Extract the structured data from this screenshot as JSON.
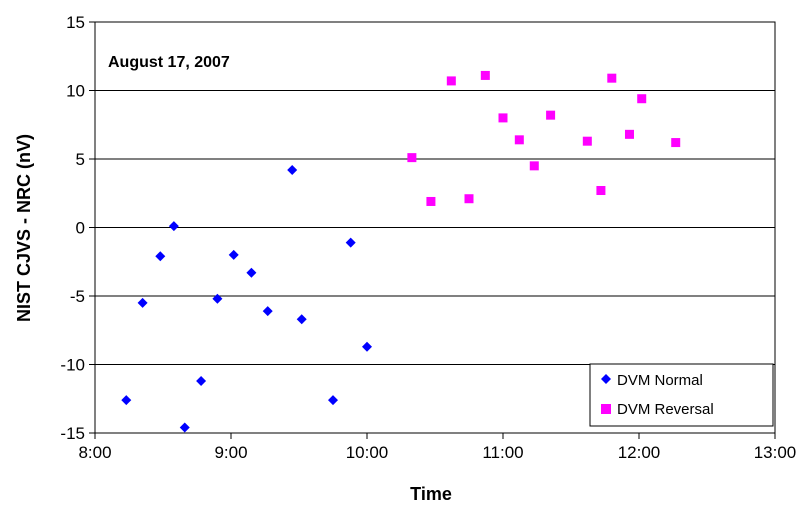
{
  "chart_data": {
    "type": "scatter",
    "title": "",
    "annotation": "August 17, 2007",
    "xlabel": "Time",
    "ylabel": "NIST CJVS - NRC (nV)",
    "x_unit": "hours",
    "xlim": [
      8,
      13
    ],
    "ylim": [
      -15,
      15
    ],
    "x_ticks": [
      {
        "value": 8,
        "label": "8:00"
      },
      {
        "value": 9,
        "label": "9:00"
      },
      {
        "value": 10,
        "label": "10:00"
      },
      {
        "value": 11,
        "label": "11:00"
      },
      {
        "value": 12,
        "label": "12:00"
      },
      {
        "value": 13,
        "label": "13:00"
      }
    ],
    "y_ticks": [
      {
        "value": 15,
        "label": "15"
      },
      {
        "value": 10,
        "label": "10"
      },
      {
        "value": 5,
        "label": "5"
      },
      {
        "value": 0,
        "label": "0"
      },
      {
        "value": -5,
        "label": "-5"
      },
      {
        "value": -10,
        "label": "-10"
      },
      {
        "value": -15,
        "label": "-15"
      }
    ],
    "grid": "horizontal",
    "legend_position": "bottom-right",
    "series": [
      {
        "name": "DVM Normal",
        "marker": "diamond",
        "color": "#0000FF",
        "points": [
          {
            "x": 8.23,
            "y": -12.6
          },
          {
            "x": 8.35,
            "y": -5.5
          },
          {
            "x": 8.48,
            "y": -2.1
          },
          {
            "x": 8.58,
            "y": 0.1
          },
          {
            "x": 8.66,
            "y": -14.6
          },
          {
            "x": 8.78,
            "y": -11.2
          },
          {
            "x": 8.9,
            "y": -5.2
          },
          {
            "x": 9.02,
            "y": -2.0
          },
          {
            "x": 9.15,
            "y": -3.3
          },
          {
            "x": 9.27,
            "y": -6.1
          },
          {
            "x": 9.45,
            "y": 4.2
          },
          {
            "x": 9.52,
            "y": -6.7
          },
          {
            "x": 9.75,
            "y": -12.6
          },
          {
            "x": 9.88,
            "y": -1.1
          },
          {
            "x": 10.0,
            "y": -8.7
          }
        ]
      },
      {
        "name": "DVM Reversal",
        "marker": "square",
        "color": "#FF00FF",
        "points": [
          {
            "x": 10.33,
            "y": 5.1
          },
          {
            "x": 10.47,
            "y": 1.9
          },
          {
            "x": 10.62,
            "y": 10.7
          },
          {
            "x": 10.75,
            "y": 2.1
          },
          {
            "x": 10.87,
            "y": 11.1
          },
          {
            "x": 11.0,
            "y": 8.0
          },
          {
            "x": 11.12,
            "y": 6.4
          },
          {
            "x": 11.23,
            "y": 4.5
          },
          {
            "x": 11.35,
            "y": 8.2
          },
          {
            "x": 11.62,
            "y": 6.3
          },
          {
            "x": 11.72,
            "y": 2.7
          },
          {
            "x": 11.8,
            "y": 10.9
          },
          {
            "x": 11.93,
            "y": 6.8
          },
          {
            "x": 12.02,
            "y": 9.4
          },
          {
            "x": 12.27,
            "y": 6.2
          }
        ]
      }
    ]
  }
}
